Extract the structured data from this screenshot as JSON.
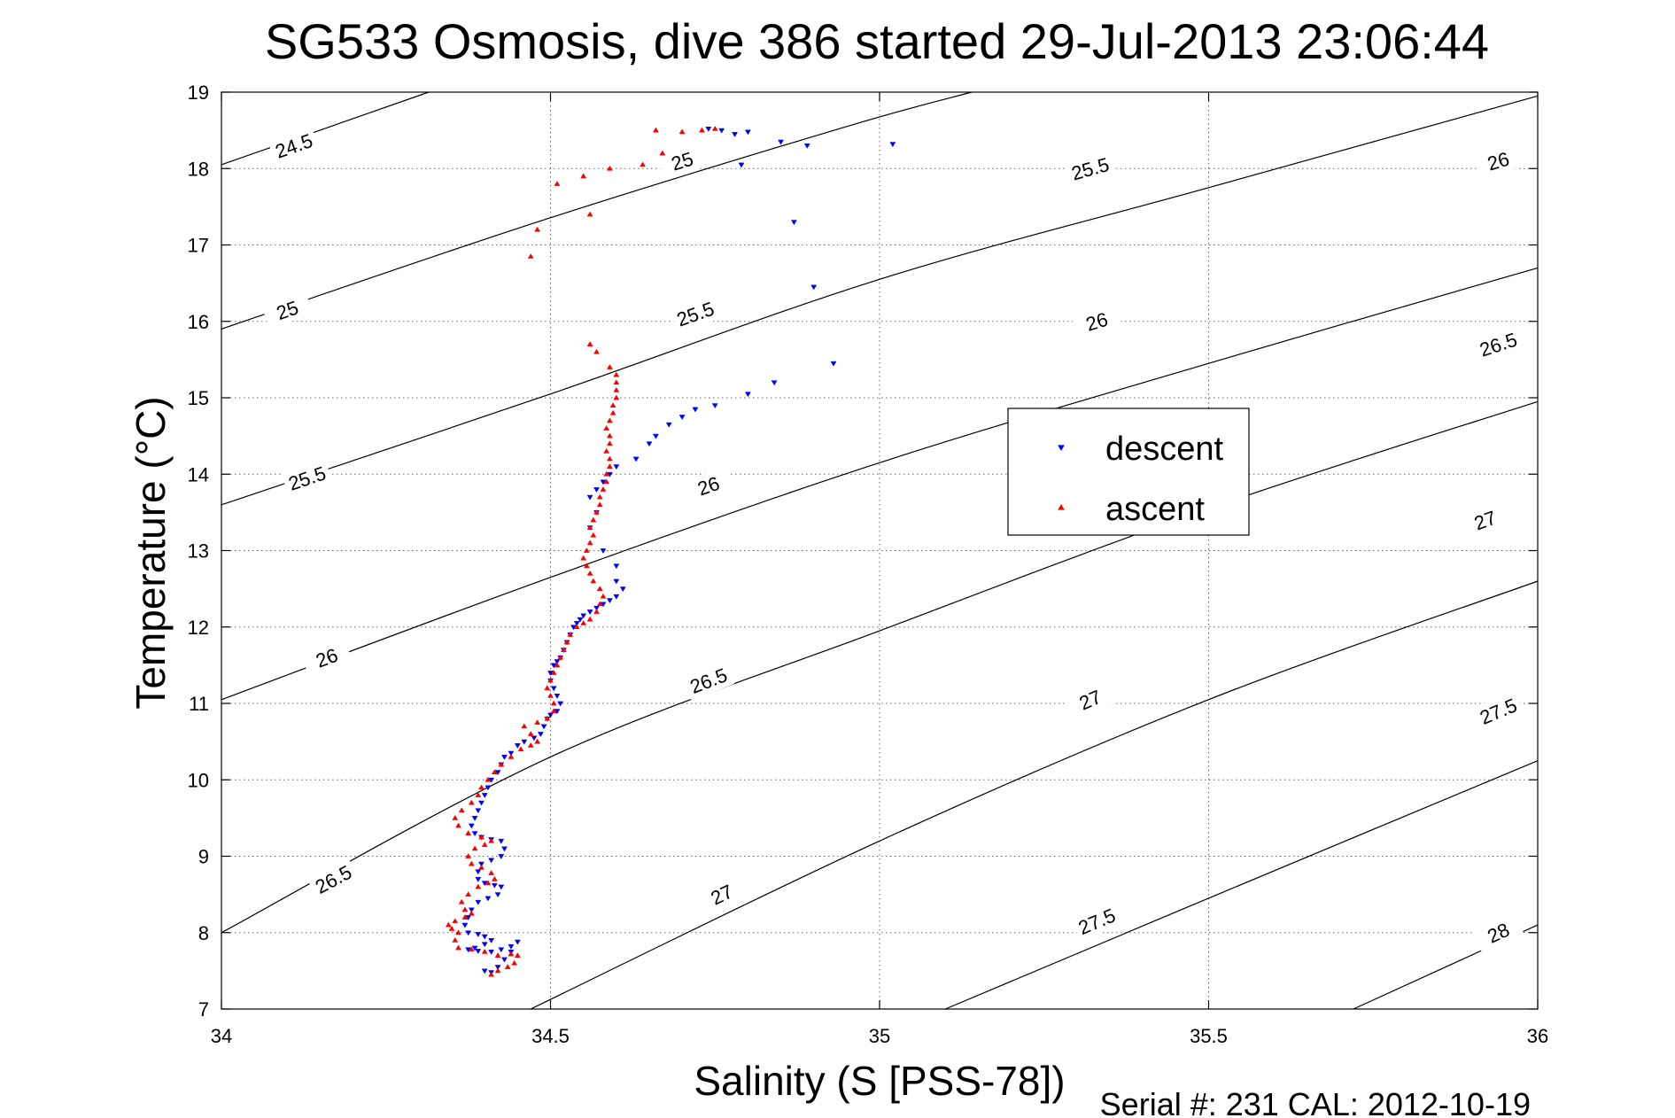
{
  "chart_data": {
    "type": "scatter",
    "title": "SG533 Osmosis, dive 386 started 29-Jul-2013 23:06:44",
    "xlabel": "Salinity (S [PSS-78])",
    "ylabel": "Temperature (°C)",
    "xlim": [
      34,
      36
    ],
    "ylim": [
      7,
      19
    ],
    "xticks": [
      34,
      34.5,
      35,
      35.5,
      36
    ],
    "xtick_labels": [
      "34",
      "34.5",
      "35",
      "35.5",
      "36"
    ],
    "yticks": [
      7,
      8,
      9,
      10,
      11,
      12,
      13,
      14,
      15,
      16,
      17,
      18,
      19
    ],
    "ytick_labels": [
      "7",
      "8",
      "9",
      "10",
      "11",
      "12",
      "13",
      "14",
      "15",
      "16",
      "17",
      "18",
      "19"
    ],
    "grid": true,
    "legend_position": "center-right",
    "footer": "Serial #: 231  CAL: 2012-10-19",
    "colors": {
      "descent": "#0000ff",
      "ascent": "#ff0000",
      "contour": "#000000"
    },
    "contours": [
      {
        "level": "24.5",
        "points": [
          [
            34,
            18.05
          ],
          [
            34.315,
            19
          ]
        ],
        "labels": [
          [
            34.11,
            18.3
          ]
        ]
      },
      {
        "level": "25",
        "points": [
          [
            34,
            15.9
          ],
          [
            34.48,
            17.3
          ],
          [
            34.95,
            18.55
          ],
          [
            35.14,
            19
          ]
        ],
        "labels": [
          [
            34.1,
            16.15
          ],
          [
            34.7,
            18.1
          ]
        ]
      },
      {
        "level": "25.5",
        "points": [
          [
            34,
            13.6
          ],
          [
            34.5,
            15.05
          ],
          [
            35,
            16.55
          ],
          [
            35.5,
            17.75
          ],
          [
            36,
            18.95
          ]
        ],
        "labels": [
          [
            34.13,
            13.95
          ],
          [
            34.72,
            16.1
          ],
          [
            35.32,
            18.0
          ]
        ]
      },
      {
        "level": "26",
        "points": [
          [
            34,
            11.05
          ],
          [
            34.5,
            12.65
          ],
          [
            35,
            14.15
          ],
          [
            35.5,
            15.45
          ],
          [
            36,
            16.7
          ]
        ],
        "labels": [
          [
            34.16,
            11.6
          ],
          [
            34.74,
            13.85
          ],
          [
            35.33,
            16.0
          ],
          [
            35.94,
            18.1
          ]
        ]
      },
      {
        "level": "26.5",
        "points": [
          [
            34,
            8.0
          ],
          [
            34.5,
            10.3
          ],
          [
            35,
            11.95
          ],
          [
            35.5,
            13.55
          ],
          [
            36,
            14.95
          ]
        ],
        "labels": [
          [
            34.17,
            8.7
          ],
          [
            34.74,
            11.3
          ],
          [
            35.94,
            15.7
          ]
        ]
      },
      {
        "level": "27",
        "points": [
          [
            34.47,
            7
          ],
          [
            35,
            9.2
          ],
          [
            35.5,
            11.05
          ],
          [
            36,
            12.6
          ]
        ],
        "labels": [
          [
            34.76,
            8.5
          ],
          [
            35.32,
            11.05
          ],
          [
            35.92,
            13.4
          ]
        ]
      },
      {
        "level": "27.5",
        "points": [
          [
            35.1,
            7
          ],
          [
            35.5,
            8.45
          ],
          [
            36,
            10.25
          ]
        ],
        "labels": [
          [
            35.33,
            8.15
          ],
          [
            35.94,
            10.9
          ]
        ]
      },
      {
        "level": "28",
        "points": [
          [
            35.72,
            7
          ],
          [
            36,
            8.1
          ]
        ],
        "labels": [
          [
            35.94,
            8.0
          ]
        ]
      }
    ],
    "series": [
      {
        "name": "descent",
        "marker": "triangle-down",
        "values": [
          [
            34.74,
            18.52
          ],
          [
            34.76,
            18.5
          ],
          [
            34.78,
            18.45
          ],
          [
            34.8,
            18.48
          ],
          [
            34.85,
            18.35
          ],
          [
            34.89,
            18.3
          ],
          [
            35.02,
            18.32
          ],
          [
            34.79,
            18.05
          ],
          [
            34.87,
            17.3
          ],
          [
            34.9,
            16.45
          ],
          [
            34.93,
            15.45
          ],
          [
            34.84,
            15.2
          ],
          [
            34.8,
            15.05
          ],
          [
            34.75,
            14.9
          ],
          [
            34.72,
            14.85
          ],
          [
            34.7,
            14.75
          ],
          [
            34.68,
            14.65
          ],
          [
            34.66,
            14.5
          ],
          [
            34.65,
            14.4
          ],
          [
            34.63,
            14.2
          ],
          [
            34.6,
            14.1
          ],
          [
            34.59,
            14.0
          ],
          [
            34.58,
            13.9
          ],
          [
            34.57,
            13.8
          ],
          [
            34.56,
            13.7
          ],
          [
            34.57,
            13.5
          ],
          [
            34.56,
            13.3
          ],
          [
            34.58,
            13.0
          ],
          [
            34.6,
            12.8
          ],
          [
            34.6,
            12.6
          ],
          [
            34.61,
            12.5
          ],
          [
            34.6,
            12.4
          ],
          [
            34.59,
            12.35
          ],
          [
            34.58,
            12.3
          ],
          [
            34.57,
            12.25
          ],
          [
            34.56,
            12.2
          ],
          [
            34.55,
            12.15
          ],
          [
            34.545,
            12.1
          ],
          [
            34.54,
            12.05
          ],
          [
            34.535,
            12.0
          ],
          [
            34.53,
            11.9
          ],
          [
            34.525,
            11.8
          ],
          [
            34.52,
            11.7
          ],
          [
            34.515,
            11.6
          ],
          [
            34.51,
            11.55
          ],
          [
            34.505,
            11.5
          ],
          [
            34.5,
            11.4
          ],
          [
            34.5,
            11.3
          ],
          [
            34.505,
            11.2
          ],
          [
            34.51,
            11.1
          ],
          [
            34.515,
            11.0
          ],
          [
            34.51,
            10.9
          ],
          [
            34.5,
            10.85
          ],
          [
            34.495,
            10.8
          ],
          [
            34.49,
            10.7
          ],
          [
            34.485,
            10.6
          ],
          [
            34.475,
            10.55
          ],
          [
            34.46,
            10.5
          ],
          [
            34.45,
            10.45
          ],
          [
            34.44,
            10.35
          ],
          [
            34.43,
            10.3
          ],
          [
            34.425,
            10.2
          ],
          [
            34.42,
            10.1
          ],
          [
            34.41,
            10.0
          ],
          [
            34.405,
            9.9
          ],
          [
            34.4,
            9.8
          ],
          [
            34.395,
            9.7
          ],
          [
            34.39,
            9.6
          ],
          [
            34.385,
            9.5
          ],
          [
            34.38,
            9.4
          ],
          [
            34.385,
            9.3
          ],
          [
            34.395,
            9.25
          ],
          [
            34.41,
            9.22
          ],
          [
            34.425,
            9.2
          ],
          [
            34.43,
            9.1
          ],
          [
            34.425,
            9.0
          ],
          [
            34.41,
            8.95
          ],
          [
            34.395,
            8.9
          ],
          [
            34.39,
            8.8
          ],
          [
            34.39,
            8.7
          ],
          [
            34.4,
            8.65
          ],
          [
            34.415,
            8.62
          ],
          [
            34.425,
            8.6
          ],
          [
            34.42,
            8.5
          ],
          [
            34.405,
            8.45
          ],
          [
            34.39,
            8.4
          ],
          [
            34.38,
            8.3
          ],
          [
            34.375,
            8.2
          ],
          [
            34.37,
            8.1
          ],
          [
            34.375,
            8.0
          ],
          [
            34.39,
            7.98
          ],
          [
            34.4,
            7.95
          ],
          [
            34.41,
            7.9
          ],
          [
            34.4,
            7.85
          ],
          [
            34.385,
            7.8
          ],
          [
            34.375,
            7.78
          ],
          [
            34.39,
            7.76
          ],
          [
            34.41,
            7.75
          ],
          [
            34.425,
            7.78
          ],
          [
            34.44,
            7.82
          ],
          [
            34.45,
            7.88
          ],
          [
            34.44,
            7.75
          ],
          [
            34.43,
            7.65
          ],
          [
            34.42,
            7.55
          ],
          [
            34.41,
            7.48
          ],
          [
            34.4,
            7.5
          ]
        ]
      },
      {
        "name": "ascent",
        "marker": "triangle-up",
        "values": [
          [
            34.41,
            7.45
          ],
          [
            34.42,
            7.5
          ],
          [
            34.435,
            7.55
          ],
          [
            34.445,
            7.6
          ],
          [
            34.45,
            7.7
          ],
          [
            34.44,
            7.72
          ],
          [
            34.42,
            7.7
          ],
          [
            34.4,
            7.75
          ],
          [
            34.38,
            7.78
          ],
          [
            34.36,
            7.8
          ],
          [
            34.355,
            7.9
          ],
          [
            34.36,
            8.0
          ],
          [
            34.35,
            8.05
          ],
          [
            34.345,
            8.1
          ],
          [
            34.355,
            8.15
          ],
          [
            34.37,
            8.2
          ],
          [
            34.38,
            8.25
          ],
          [
            34.37,
            8.3
          ],
          [
            34.365,
            8.4
          ],
          [
            34.375,
            8.5
          ],
          [
            34.39,
            8.6
          ],
          [
            34.405,
            8.65
          ],
          [
            34.415,
            8.7
          ],
          [
            34.41,
            8.78
          ],
          [
            34.395,
            8.85
          ],
          [
            34.38,
            8.9
          ],
          [
            34.375,
            9.0
          ],
          [
            34.385,
            9.1
          ],
          [
            34.4,
            9.15
          ],
          [
            34.41,
            9.2
          ],
          [
            34.395,
            9.25
          ],
          [
            34.375,
            9.3
          ],
          [
            34.36,
            9.4
          ],
          [
            34.355,
            9.5
          ],
          [
            34.365,
            9.6
          ],
          [
            34.38,
            9.7
          ],
          [
            34.39,
            9.8
          ],
          [
            34.395,
            9.9
          ],
          [
            34.405,
            10.0
          ],
          [
            34.415,
            10.1
          ],
          [
            34.425,
            10.2
          ],
          [
            34.44,
            10.3
          ],
          [
            34.455,
            10.4
          ],
          [
            34.47,
            10.45
          ],
          [
            34.48,
            10.5
          ],
          [
            34.47,
            10.6
          ],
          [
            34.46,
            10.7
          ],
          [
            34.48,
            10.75
          ],
          [
            34.495,
            10.8
          ],
          [
            34.505,
            10.9
          ],
          [
            34.505,
            11.0
          ],
          [
            34.5,
            11.1
          ],
          [
            34.495,
            11.2
          ],
          [
            34.5,
            11.3
          ],
          [
            34.505,
            11.4
          ],
          [
            34.51,
            11.5
          ],
          [
            34.515,
            11.6
          ],
          [
            34.52,
            11.7
          ],
          [
            34.525,
            11.8
          ],
          [
            34.53,
            11.9
          ],
          [
            34.54,
            12.0
          ],
          [
            34.55,
            12.05
          ],
          [
            34.56,
            12.1
          ],
          [
            34.57,
            12.2
          ],
          [
            34.575,
            12.3
          ],
          [
            34.58,
            12.4
          ],
          [
            34.575,
            12.5
          ],
          [
            34.565,
            12.6
          ],
          [
            34.56,
            12.7
          ],
          [
            34.555,
            12.8
          ],
          [
            34.55,
            12.9
          ],
          [
            34.555,
            13.0
          ],
          [
            34.56,
            13.1
          ],
          [
            34.565,
            13.2
          ],
          [
            34.56,
            13.3
          ],
          [
            34.565,
            13.4
          ],
          [
            34.57,
            13.5
          ],
          [
            34.575,
            13.6
          ],
          [
            34.575,
            13.7
          ],
          [
            34.58,
            13.8
          ],
          [
            34.585,
            13.9
          ],
          [
            34.585,
            14.0
          ],
          [
            34.59,
            14.1
          ],
          [
            34.59,
            14.2
          ],
          [
            34.585,
            14.3
          ],
          [
            34.59,
            14.4
          ],
          [
            34.59,
            14.5
          ],
          [
            34.585,
            14.6
          ],
          [
            34.59,
            14.7
          ],
          [
            34.595,
            14.8
          ],
          [
            34.595,
            14.9
          ],
          [
            34.6,
            15.0
          ],
          [
            34.6,
            15.1
          ],
          [
            34.6,
            15.2
          ],
          [
            34.6,
            15.3
          ],
          [
            34.59,
            15.4
          ],
          [
            34.57,
            15.6
          ],
          [
            34.56,
            15.7
          ],
          [
            34.47,
            16.85
          ],
          [
            34.48,
            17.2
          ],
          [
            34.56,
            17.4
          ],
          [
            34.51,
            17.8
          ],
          [
            34.55,
            17.9
          ],
          [
            34.59,
            18.0
          ],
          [
            34.64,
            18.05
          ],
          [
            34.67,
            18.2
          ],
          [
            34.66,
            18.5
          ],
          [
            34.7,
            18.48
          ],
          [
            34.73,
            18.5
          ],
          [
            34.75,
            18.52
          ]
        ]
      }
    ]
  }
}
